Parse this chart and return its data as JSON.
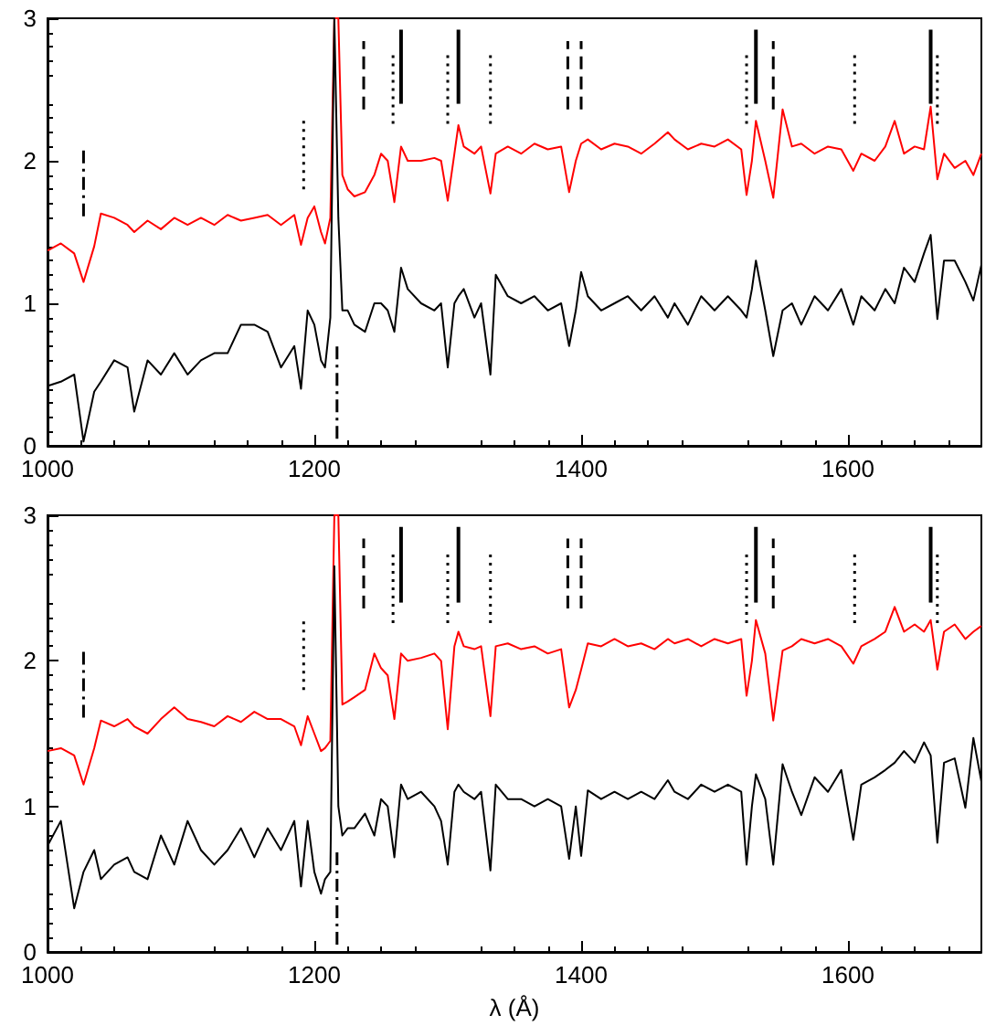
{
  "chart_data": [
    {
      "type": "line",
      "xlim": [
        1000,
        1700
      ],
      "xticks": [
        1000,
        1200,
        1400,
        1600
      ],
      "ylim": [
        0,
        3
      ],
      "yticks": [
        0,
        1,
        2,
        3
      ],
      "grid": false,
      "x": [
        1000,
        1010,
        1020,
        1027,
        1035,
        1040,
        1050,
        1060,
        1065,
        1075,
        1085,
        1095,
        1105,
        1115,
        1125,
        1135,
        1145,
        1155,
        1165,
        1175,
        1185,
        1190,
        1195,
        1200,
        1205,
        1208,
        1212,
        1215,
        1218,
        1221,
        1225,
        1230,
        1238,
        1245,
        1250,
        1255,
        1260,
        1265,
        1270,
        1280,
        1290,
        1295,
        1300,
        1305,
        1308,
        1312,
        1320,
        1325,
        1332,
        1336,
        1345,
        1355,
        1365,
        1375,
        1385,
        1391,
        1396,
        1400,
        1405,
        1415,
        1425,
        1435,
        1445,
        1455,
        1465,
        1470,
        1480,
        1490,
        1500,
        1510,
        1520,
        1524,
        1528,
        1531,
        1538,
        1544,
        1551,
        1558,
        1565,
        1575,
        1585,
        1595,
        1604,
        1610,
        1620,
        1628,
        1635,
        1642,
        1650,
        1657,
        1662,
        1667,
        1672,
        1680,
        1688,
        1694,
        1700
      ],
      "series": [
        {
          "color": "#ff0000",
          "values": [
            1.37,
            1.42,
            1.35,
            1.15,
            1.4,
            1.63,
            1.6,
            1.55,
            1.5,
            1.58,
            1.52,
            1.6,
            1.55,
            1.6,
            1.55,
            1.62,
            1.58,
            1.6,
            1.62,
            1.55,
            1.62,
            1.41,
            1.6,
            1.68,
            1.5,
            1.42,
            1.6,
            3.0,
            3.0,
            1.9,
            1.8,
            1.75,
            1.78,
            1.9,
            2.05,
            2.0,
            1.71,
            2.1,
            2.0,
            2.0,
            2.02,
            2.0,
            1.72,
            2.05,
            2.25,
            2.1,
            2.05,
            2.1,
            1.77,
            2.05,
            2.1,
            2.05,
            2.12,
            2.08,
            2.1,
            1.78,
            2.0,
            2.12,
            2.15,
            2.08,
            2.12,
            2.1,
            2.05,
            2.12,
            2.2,
            2.15,
            2.08,
            2.12,
            2.1,
            2.15,
            2.08,
            1.76,
            2.0,
            2.28,
            2.0,
            1.74,
            2.36,
            2.1,
            2.12,
            2.05,
            2.1,
            2.08,
            1.93,
            2.05,
            2.0,
            2.1,
            2.28,
            2.05,
            2.1,
            2.08,
            2.38,
            1.87,
            2.05,
            1.95,
            2.0,
            1.9,
            2.05
          ]
        },
        {
          "color": "#000000",
          "values": [
            0.42,
            0.45,
            0.5,
            0.03,
            0.38,
            0.45,
            0.6,
            0.55,
            0.24,
            0.6,
            0.5,
            0.65,
            0.5,
            0.6,
            0.65,
            0.65,
            0.85,
            0.85,
            0.8,
            0.55,
            0.7,
            0.4,
            0.95,
            0.85,
            0.6,
            0.55,
            0.9,
            3.0,
            1.6,
            0.95,
            0.95,
            0.85,
            0.8,
            1.0,
            1.0,
            0.95,
            0.8,
            1.25,
            1.1,
            1.0,
            0.95,
            1.0,
            0.55,
            1.0,
            1.05,
            1.1,
            0.9,
            1.0,
            0.5,
            1.2,
            1.05,
            1.0,
            1.05,
            0.95,
            1.0,
            0.7,
            0.95,
            1.22,
            1.05,
            0.95,
            1.0,
            1.05,
            0.95,
            1.05,
            0.9,
            1.0,
            0.85,
            1.05,
            0.95,
            1.05,
            0.95,
            0.9,
            1.1,
            1.3,
            0.95,
            0.63,
            0.95,
            1.0,
            0.85,
            1.05,
            0.95,
            1.1,
            0.85,
            1.05,
            0.95,
            1.1,
            1.0,
            1.25,
            1.15,
            1.35,
            1.48,
            0.89,
            1.3,
            1.3,
            1.15,
            1.02,
            1.27
          ]
        },
        {
          "color": "#000000",
          "line_style": "dashdot",
          "x": [
            1027,
            1027
          ],
          "values": [
            1.61,
            2.1
          ]
        },
        {
          "color": "#000000",
          "line_style": "dotted",
          "x": [
            1192,
            1192
          ],
          "values": [
            1.8,
            2.3
          ]
        },
        {
          "color": "#000000",
          "line_style": "dashdot",
          "x": [
            1217,
            1217
          ],
          "values": [
            0.05,
            0.7
          ]
        },
        {
          "color": "#000000",
          "line_style": "dashed",
          "x": [
            1237,
            1237
          ],
          "values": [
            2.36,
            2.84
          ]
        },
        {
          "color": "#000000",
          "line_style": "dotted",
          "x": [
            1259,
            1259
          ],
          "values": [
            2.26,
            2.75
          ]
        },
        {
          "color": "#000000",
          "line_style": "solid",
          "x": [
            1265,
            1265
          ],
          "values": [
            2.4,
            2.92
          ]
        },
        {
          "color": "#000000",
          "line_style": "dotted",
          "x": [
            1300,
            1300
          ],
          "values": [
            2.26,
            2.75
          ]
        },
        {
          "color": "#000000",
          "line_style": "solid",
          "x": [
            1308,
            1308
          ],
          "values": [
            2.4,
            2.92
          ]
        },
        {
          "color": "#000000",
          "line_style": "dotted",
          "x": [
            1332,
            1332
          ],
          "values": [
            2.26,
            2.75
          ]
        },
        {
          "color": "#000000",
          "line_style": "dashed",
          "x": [
            1390,
            1390
          ],
          "values": [
            2.36,
            2.84
          ]
        },
        {
          "color": "#000000",
          "line_style": "dashed",
          "x": [
            1400,
            1400
          ],
          "values": [
            2.36,
            2.84
          ]
        },
        {
          "color": "#000000",
          "line_style": "dotted",
          "x": [
            1524,
            1524
          ],
          "values": [
            2.26,
            2.75
          ]
        },
        {
          "color": "#000000",
          "line_style": "solid",
          "x": [
            1531,
            1531
          ],
          "values": [
            2.4,
            2.92
          ]
        },
        {
          "color": "#000000",
          "line_style": "dashed",
          "x": [
            1544,
            1544
          ],
          "values": [
            2.36,
            2.84
          ]
        },
        {
          "color": "#000000",
          "line_style": "dotted",
          "x": [
            1605,
            1605
          ],
          "values": [
            2.26,
            2.75
          ]
        },
        {
          "color": "#000000",
          "line_style": "solid",
          "x": [
            1662,
            1662
          ],
          "values": [
            2.4,
            2.92
          ]
        },
        {
          "color": "#000000",
          "line_style": "dotted",
          "x": [
            1667,
            1667
          ],
          "values": [
            2.26,
            2.75
          ]
        }
      ]
    },
    {
      "type": "line",
      "xlabel": "λ (Å)",
      "xlim": [
        1000,
        1700
      ],
      "xticks": [
        1000,
        1200,
        1400,
        1600
      ],
      "ylim": [
        0,
        3
      ],
      "yticks": [
        0,
        1,
        2,
        3
      ],
      "grid": false,
      "x": [
        1000,
        1010,
        1020,
        1027,
        1035,
        1040,
        1050,
        1060,
        1065,
        1075,
        1085,
        1095,
        1105,
        1115,
        1125,
        1135,
        1145,
        1155,
        1165,
        1175,
        1185,
        1190,
        1195,
        1200,
        1205,
        1208,
        1212,
        1215,
        1218,
        1221,
        1225,
        1230,
        1238,
        1245,
        1250,
        1255,
        1260,
        1265,
        1270,
        1280,
        1290,
        1295,
        1300,
        1305,
        1308,
        1312,
        1320,
        1325,
        1332,
        1336,
        1345,
        1355,
        1365,
        1375,
        1385,
        1391,
        1396,
        1400,
        1405,
        1415,
        1425,
        1435,
        1445,
        1455,
        1465,
        1470,
        1480,
        1490,
        1500,
        1510,
        1520,
        1524,
        1528,
        1531,
        1538,
        1544,
        1551,
        1558,
        1565,
        1575,
        1585,
        1595,
        1604,
        1610,
        1620,
        1628,
        1635,
        1642,
        1650,
        1657,
        1662,
        1667,
        1672,
        1680,
        1688,
        1694,
        1700
      ],
      "series": [
        {
          "color": "#ff0000",
          "values": [
            1.38,
            1.4,
            1.35,
            1.15,
            1.4,
            1.59,
            1.55,
            1.6,
            1.55,
            1.5,
            1.6,
            1.68,
            1.6,
            1.58,
            1.55,
            1.62,
            1.58,
            1.65,
            1.6,
            1.6,
            1.55,
            1.42,
            1.62,
            1.5,
            1.38,
            1.4,
            1.45,
            3.0,
            3.0,
            1.7,
            1.72,
            1.75,
            1.8,
            2.05,
            1.95,
            1.9,
            1.6,
            2.05,
            2.0,
            2.02,
            2.05,
            2.0,
            1.53,
            2.1,
            2.2,
            2.1,
            2.08,
            2.1,
            1.62,
            2.1,
            2.12,
            2.08,
            2.1,
            2.05,
            2.08,
            1.68,
            1.8,
            1.94,
            2.12,
            2.1,
            2.15,
            2.1,
            2.12,
            2.08,
            2.15,
            2.12,
            2.15,
            2.1,
            2.15,
            2.12,
            2.15,
            1.76,
            2.0,
            2.28,
            2.05,
            1.59,
            2.07,
            2.1,
            2.15,
            2.12,
            2.15,
            2.1,
            1.98,
            2.1,
            2.15,
            2.2,
            2.37,
            2.2,
            2.25,
            2.2,
            2.28,
            1.94,
            2.2,
            2.25,
            2.15,
            2.2,
            2.24
          ]
        },
        {
          "color": "#000000",
          "values": [
            0.73,
            0.9,
            0.3,
            0.55,
            0.7,
            0.5,
            0.6,
            0.65,
            0.55,
            0.5,
            0.8,
            0.6,
            0.9,
            0.7,
            0.6,
            0.7,
            0.85,
            0.65,
            0.85,
            0.7,
            0.9,
            0.45,
            0.9,
            0.55,
            0.4,
            0.5,
            0.55,
            2.65,
            1.0,
            0.8,
            0.85,
            0.85,
            0.95,
            0.8,
            1.05,
            1.0,
            0.65,
            1.15,
            1.05,
            1.1,
            1.0,
            0.9,
            0.6,
            1.1,
            1.15,
            1.1,
            1.05,
            1.1,
            0.56,
            1.15,
            1.05,
            1.05,
            1.0,
            1.05,
            1.0,
            0.64,
            1.0,
            0.66,
            1.11,
            1.05,
            1.1,
            1.05,
            1.1,
            1.05,
            1.18,
            1.1,
            1.05,
            1.15,
            1.1,
            1.15,
            1.1,
            0.6,
            1.0,
            1.22,
            1.05,
            0.6,
            1.29,
            1.1,
            0.94,
            1.2,
            1.1,
            1.25,
            0.77,
            1.15,
            1.2,
            1.25,
            1.3,
            1.38,
            1.3,
            1.44,
            1.35,
            0.75,
            1.3,
            1.33,
            0.99,
            1.47,
            1.17
          ]
        },
        {
          "color": "#000000",
          "line_style": "dashdot",
          "x": [
            1027,
            1027
          ],
          "values": [
            1.61,
            2.1
          ]
        },
        {
          "color": "#000000",
          "line_style": "dotted",
          "x": [
            1192,
            1192
          ],
          "values": [
            1.8,
            2.3
          ]
        },
        {
          "color": "#000000",
          "line_style": "dashdot",
          "x": [
            1217,
            1217
          ],
          "values": [
            0.05,
            0.7
          ]
        },
        {
          "color": "#000000",
          "line_style": "dashed",
          "x": [
            1237,
            1237
          ],
          "values": [
            2.36,
            2.84
          ]
        },
        {
          "color": "#000000",
          "line_style": "dotted",
          "x": [
            1259,
            1259
          ],
          "values": [
            2.26,
            2.75
          ]
        },
        {
          "color": "#000000",
          "line_style": "solid",
          "x": [
            1265,
            1265
          ],
          "values": [
            2.4,
            2.92
          ]
        },
        {
          "color": "#000000",
          "line_style": "dotted",
          "x": [
            1300,
            1300
          ],
          "values": [
            2.26,
            2.75
          ]
        },
        {
          "color": "#000000",
          "line_style": "solid",
          "x": [
            1308,
            1308
          ],
          "values": [
            2.4,
            2.92
          ]
        },
        {
          "color": "#000000",
          "line_style": "dotted",
          "x": [
            1332,
            1332
          ],
          "values": [
            2.26,
            2.75
          ]
        },
        {
          "color": "#000000",
          "line_style": "dashed",
          "x": [
            1390,
            1390
          ],
          "values": [
            2.36,
            2.84
          ]
        },
        {
          "color": "#000000",
          "line_style": "dashed",
          "x": [
            1400,
            1400
          ],
          "values": [
            2.36,
            2.84
          ]
        },
        {
          "color": "#000000",
          "line_style": "dotted",
          "x": [
            1524,
            1524
          ],
          "values": [
            2.26,
            2.75
          ]
        },
        {
          "color": "#000000",
          "line_style": "solid",
          "x": [
            1531,
            1531
          ],
          "values": [
            2.4,
            2.92
          ]
        },
        {
          "color": "#000000",
          "line_style": "dashed",
          "x": [
            1544,
            1544
          ],
          "values": [
            2.36,
            2.84
          ]
        },
        {
          "color": "#000000",
          "line_style": "dotted",
          "x": [
            1605,
            1605
          ],
          "values": [
            2.26,
            2.75
          ]
        },
        {
          "color": "#000000",
          "line_style": "solid",
          "x": [
            1662,
            1662
          ],
          "values": [
            2.4,
            2.92
          ]
        },
        {
          "color": "#000000",
          "line_style": "dotted",
          "x": [
            1667,
            1667
          ],
          "values": [
            2.26,
            2.75
          ]
        }
      ]
    }
  ]
}
